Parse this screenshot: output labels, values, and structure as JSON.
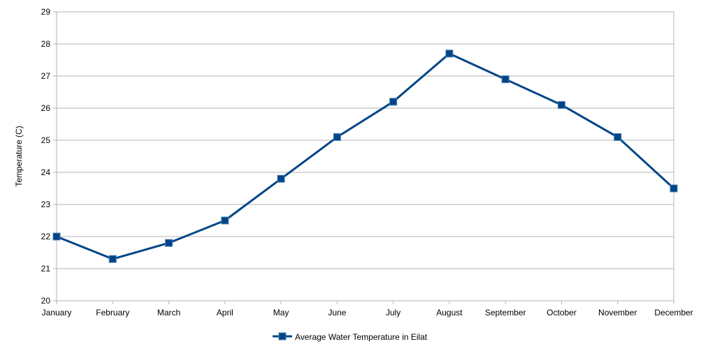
{
  "chart_data": {
    "type": "line",
    "title": "",
    "xlabel": "",
    "ylabel": "Temperature (C)",
    "categories": [
      "January",
      "February",
      "March",
      "April",
      "May",
      "June",
      "July",
      "August",
      "September",
      "October",
      "November",
      "December"
    ],
    "series": [
      {
        "name": "Average Water Temperature in Eilat",
        "values": [
          22.0,
          21.3,
          21.8,
          22.5,
          23.8,
          25.1,
          26.2,
          27.7,
          26.9,
          26.1,
          25.1,
          23.5
        ],
        "color": "#004586"
      }
    ],
    "ylim": [
      20,
      29
    ],
    "yticks": [
      20,
      21,
      22,
      23,
      24,
      25,
      26,
      27,
      28,
      29
    ],
    "grid": true,
    "legend_position": "bottom-center",
    "marker": "square"
  }
}
